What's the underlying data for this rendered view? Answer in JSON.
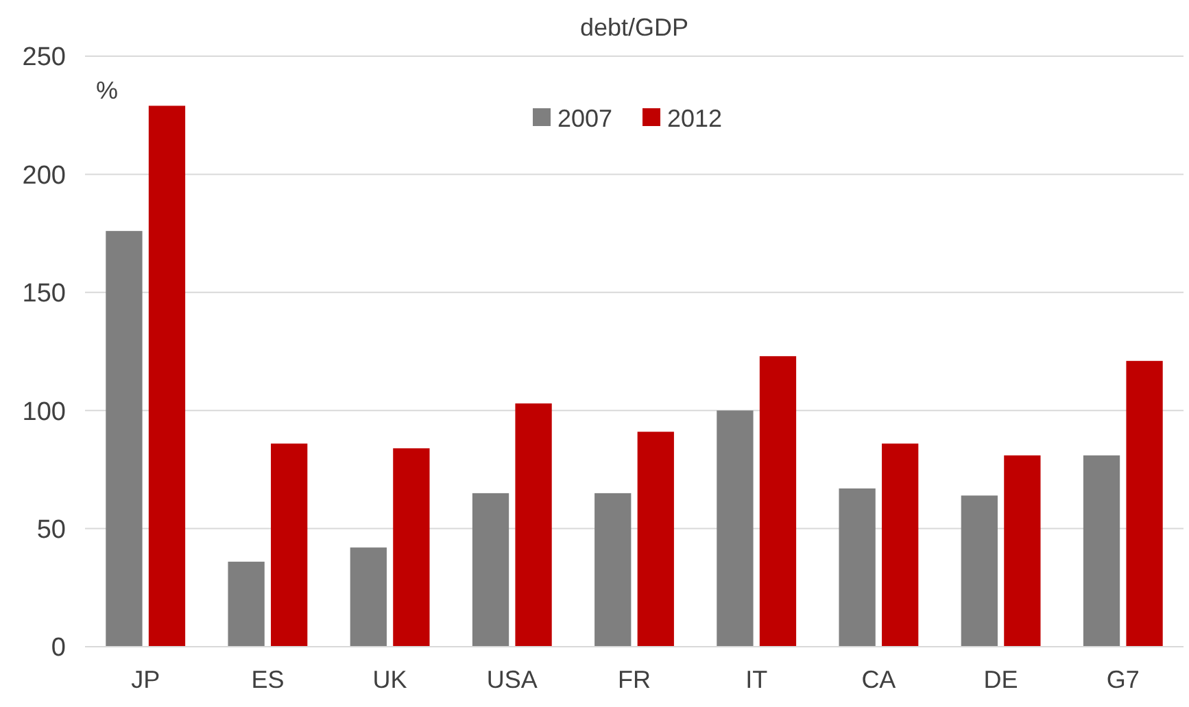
{
  "chart_data": {
    "type": "bar",
    "title": "debt/GDP",
    "ylabel": "%",
    "categories": [
      "JP",
      "ES",
      "UK",
      "USA",
      "FR",
      "IT",
      "CA",
      "DE",
      "G7"
    ],
    "series": [
      {
        "name": "2007",
        "color": "#7f7f7f",
        "values": [
          176,
          36,
          42,
          65,
          65,
          100,
          67,
          64,
          81
        ]
      },
      {
        "name": "2012",
        "color": "#c00000",
        "values": [
          229,
          86,
          84,
          103,
          91,
          123,
          86,
          81,
          121
        ]
      }
    ],
    "ylim": [
      0,
      250
    ],
    "yticks": [
      0,
      50,
      100,
      150,
      200,
      250
    ],
    "grid": "y",
    "legend": "top"
  }
}
